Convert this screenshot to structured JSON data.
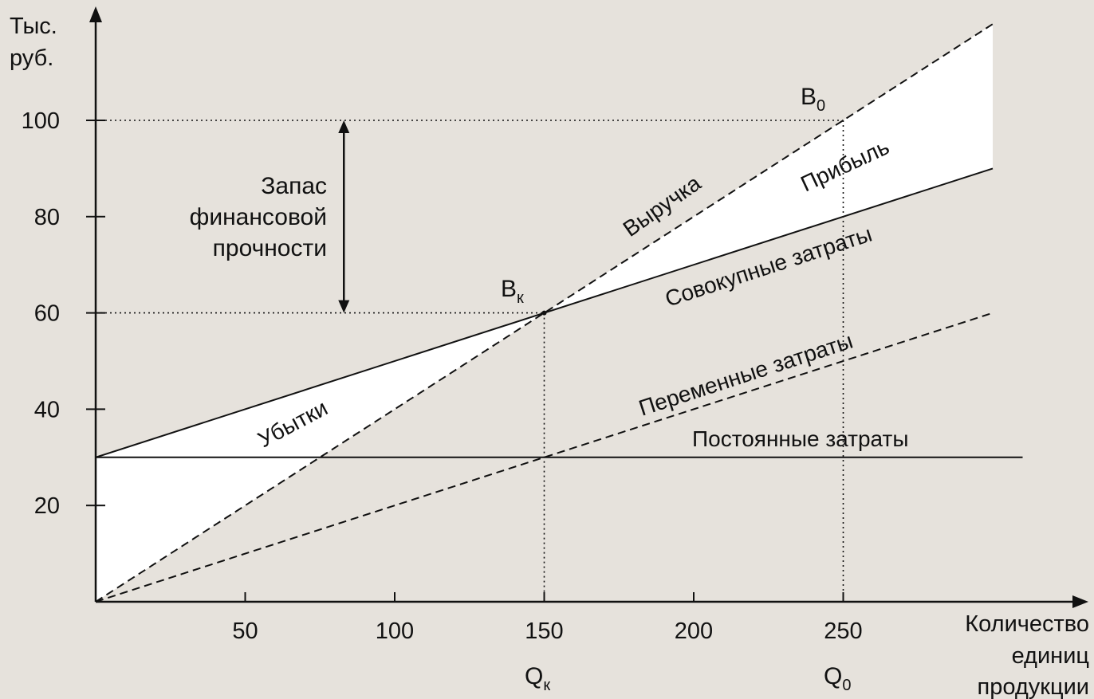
{
  "chart_data": {
    "type": "line",
    "y_axis_title": [
      "Тыс.",
      "руб."
    ],
    "x_axis_title": [
      "Количество",
      "единиц",
      "продукции"
    ],
    "x_ticks": [
      50,
      100,
      150,
      200,
      250
    ],
    "y_ticks": [
      20,
      40,
      60,
      80,
      100
    ],
    "xlim": [
      0,
      300
    ],
    "ylim": [
      0,
      120
    ],
    "series": [
      {
        "name": "Постоянные затраты",
        "x": [
          0,
          310
        ],
        "y": [
          30,
          30
        ],
        "style": "solid"
      },
      {
        "name": "Переменные затраты",
        "x": [
          0,
          300
        ],
        "y": [
          0,
          60
        ],
        "style": "dashed"
      },
      {
        "name": "Совокупные затраты",
        "x": [
          0,
          300
        ],
        "y": [
          30,
          90
        ],
        "style": "solid"
      },
      {
        "name": "Выручка",
        "x": [
          0,
          300
        ],
        "y": [
          0,
          120
        ],
        "style": "dashed"
      }
    ],
    "regions": {
      "loss_label": "Убытки",
      "profit_label": "Прибыль"
    },
    "points": {
      "break_even": {
        "label_main": "B",
        "label_sub": "к",
        "x": 150,
        "y": 60
      },
      "plan": {
        "label_main": "B",
        "label_sub": "0",
        "x": 250,
        "y": 100
      }
    },
    "x_markers": [
      {
        "label_main": "Q",
        "label_sub": "к",
        "x": 150
      },
      {
        "label_main": "Q",
        "label_sub": "0",
        "x": 250
      }
    ],
    "safety_margin": {
      "label": [
        "Запас",
        "финансовой",
        "прочности"
      ],
      "y_from": 60,
      "y_to": 100,
      "x": 83
    },
    "colors": {
      "background": "#e6e2dc",
      "fill": "#ffffff",
      "ink": "#111111"
    }
  }
}
